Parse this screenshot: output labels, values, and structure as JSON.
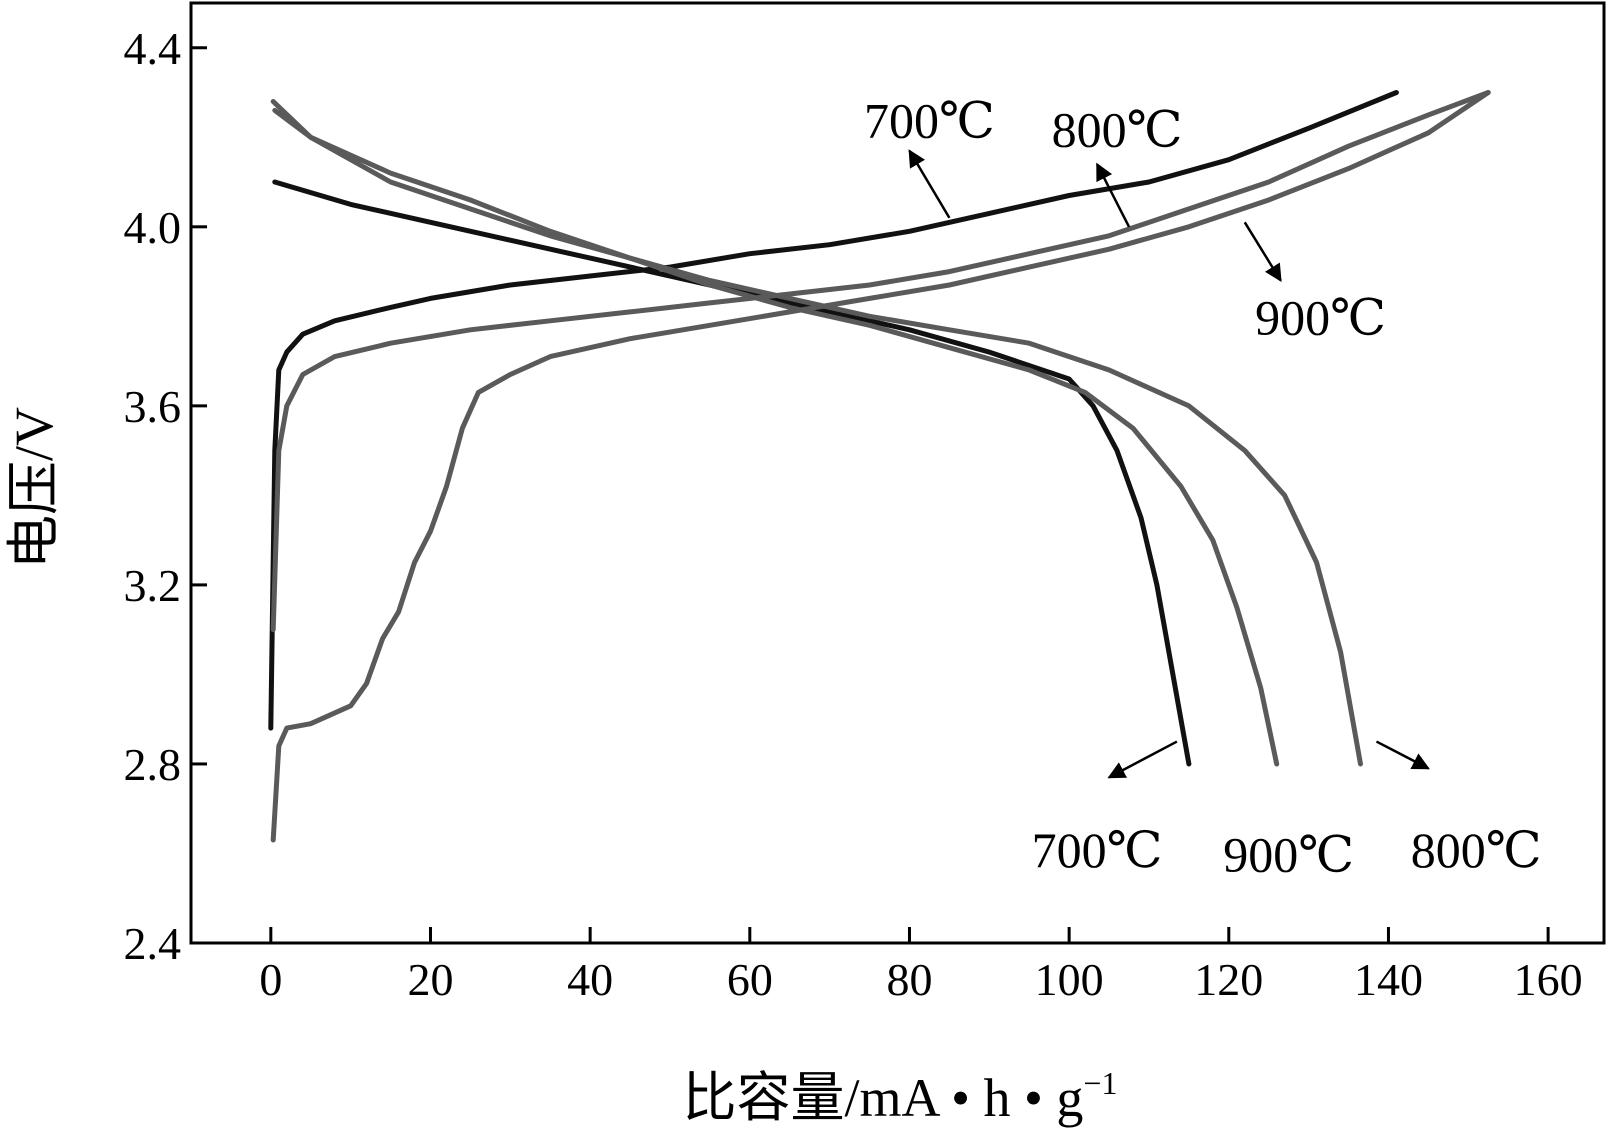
{
  "chart_data": {
    "type": "line",
    "xlabel": "比容量/mA • h • g",
    "xlabel_sup": "−1",
    "ylabel": "电压/V",
    "xlim": [
      -10,
      167
    ],
    "ylim": [
      2.4,
      4.5
    ],
    "xticks": [
      "0",
      "20",
      "40",
      "60",
      "80",
      "100",
      "120",
      "140",
      "160"
    ],
    "xtick_values": [
      0,
      20,
      40,
      60,
      80,
      100,
      120,
      140,
      160
    ],
    "yticks": [
      "2.4",
      "2.8",
      "3.2",
      "3.6",
      "4.0",
      "4.4"
    ],
    "ytick_values": [
      2.4,
      2.8,
      3.2,
      3.6,
      4.0,
      4.4
    ],
    "grid": false,
    "legend": "none",
    "series": [
      {
        "name": "700℃",
        "curve": "charge",
        "color": "#111111",
        "points": [
          [
            0,
            2.88
          ],
          [
            0.5,
            3.5
          ],
          [
            1,
            3.68
          ],
          [
            2,
            3.72
          ],
          [
            4,
            3.76
          ],
          [
            8,
            3.79
          ],
          [
            15,
            3.82
          ],
          [
            20,
            3.84
          ],
          [
            30,
            3.87
          ],
          [
            40,
            3.89
          ],
          [
            50,
            3.91
          ],
          [
            60,
            3.94
          ],
          [
            70,
            3.96
          ],
          [
            80,
            3.99
          ],
          [
            90,
            4.03
          ],
          [
            100,
            4.07
          ],
          [
            110,
            4.1
          ],
          [
            120,
            4.15
          ],
          [
            130,
            4.22
          ],
          [
            141,
            4.3
          ]
        ]
      },
      {
        "name": "700℃",
        "curve": "discharge",
        "color": "#111111",
        "points": [
          [
            0.5,
            4.1
          ],
          [
            10,
            4.05
          ],
          [
            20,
            4.01
          ],
          [
            30,
            3.97
          ],
          [
            40,
            3.93
          ],
          [
            50,
            3.89
          ],
          [
            60,
            3.85
          ],
          [
            70,
            3.81
          ],
          [
            80,
            3.77
          ],
          [
            90,
            3.72
          ],
          [
            100,
            3.66
          ],
          [
            103,
            3.6
          ],
          [
            106,
            3.5
          ],
          [
            109,
            3.35
          ],
          [
            111,
            3.2
          ],
          [
            113,
            3.0
          ],
          [
            115,
            2.8
          ]
        ]
      },
      {
        "name": "800℃",
        "curve": "charge",
        "color": "#5a5a5a",
        "points": [
          [
            0.3,
            3.1
          ],
          [
            1,
            3.5
          ],
          [
            2,
            3.6
          ],
          [
            4,
            3.67
          ],
          [
            8,
            3.71
          ],
          [
            15,
            3.74
          ],
          [
            25,
            3.77
          ],
          [
            35,
            3.79
          ],
          [
            45,
            3.81
          ],
          [
            55,
            3.83
          ],
          [
            65,
            3.85
          ],
          [
            75,
            3.87
          ],
          [
            85,
            3.9
          ],
          [
            95,
            3.94
          ],
          [
            105,
            3.98
          ],
          [
            115,
            4.04
          ],
          [
            125,
            4.1
          ],
          [
            135,
            4.18
          ],
          [
            145,
            4.25
          ],
          [
            152.5,
            4.3
          ]
        ]
      },
      {
        "name": "800℃",
        "curve": "discharge",
        "color": "#5a5a5a",
        "points": [
          [
            0.3,
            4.28
          ],
          [
            5,
            4.2
          ],
          [
            15,
            4.1
          ],
          [
            25,
            4.04
          ],
          [
            35,
            3.98
          ],
          [
            45,
            3.93
          ],
          [
            55,
            3.88
          ],
          [
            65,
            3.84
          ],
          [
            75,
            3.8
          ],
          [
            85,
            3.77
          ],
          [
            95,
            3.74
          ],
          [
            105,
            3.68
          ],
          [
            115,
            3.6
          ],
          [
            122,
            3.5
          ],
          [
            127,
            3.4
          ],
          [
            131,
            3.25
          ],
          [
            134,
            3.05
          ],
          [
            136.5,
            2.8
          ]
        ]
      },
      {
        "name": "900℃",
        "curve": "charge",
        "color": "#5a5a5a",
        "points": [
          [
            0.3,
            2.63
          ],
          [
            1,
            2.84
          ],
          [
            2,
            2.88
          ],
          [
            5,
            2.89
          ],
          [
            10,
            2.93
          ],
          [
            12,
            2.98
          ],
          [
            14,
            3.08
          ],
          [
            16,
            3.14
          ],
          [
            18,
            3.25
          ],
          [
            20,
            3.32
          ],
          [
            22,
            3.42
          ],
          [
            24,
            3.55
          ],
          [
            26,
            3.63
          ],
          [
            30,
            3.67
          ],
          [
            35,
            3.71
          ],
          [
            45,
            3.75
          ],
          [
            55,
            3.78
          ],
          [
            65,
            3.81
          ],
          [
            75,
            3.84
          ],
          [
            85,
            3.87
          ],
          [
            95,
            3.91
          ],
          [
            105,
            3.95
          ],
          [
            115,
            4.0
          ],
          [
            125,
            4.06
          ],
          [
            135,
            4.13
          ],
          [
            145,
            4.21
          ],
          [
            152.5,
            4.3
          ]
        ]
      },
      {
        "name": "900℃",
        "curve": "discharge",
        "color": "#5a5a5a",
        "points": [
          [
            0.5,
            4.26
          ],
          [
            5,
            4.2
          ],
          [
            15,
            4.12
          ],
          [
            25,
            4.06
          ],
          [
            35,
            3.99
          ],
          [
            45,
            3.93
          ],
          [
            55,
            3.87
          ],
          [
            65,
            3.82
          ],
          [
            75,
            3.78
          ],
          [
            85,
            3.73
          ],
          [
            95,
            3.68
          ],
          [
            102,
            3.63
          ],
          [
            108,
            3.55
          ],
          [
            114,
            3.42
          ],
          [
            118,
            3.3
          ],
          [
            121,
            3.15
          ],
          [
            124,
            2.97
          ],
          [
            126,
            2.8
          ]
        ]
      }
    ],
    "annotations": [
      {
        "text": "700℃",
        "label_at": [
          82.5,
          4.24
        ],
        "arrow_from": [
          85,
          4.02
        ],
        "arrow_to": [
          80,
          4.17
        ]
      },
      {
        "text": "800℃",
        "label_at": [
          106,
          4.22
        ],
        "arrow_from": [
          107.5,
          4.0
        ],
        "arrow_to": [
          103.5,
          4.14
        ]
      },
      {
        "text": "900℃",
        "label_at": [
          131.5,
          3.8
        ],
        "arrow_from": [
          122,
          4.01
        ],
        "arrow_to": [
          126.5,
          3.88
        ]
      },
      {
        "text": "700℃",
        "label_at": [
          103.5,
          2.61
        ],
        "arrow_from": [
          113.5,
          2.85
        ],
        "arrow_to": [
          105,
          2.77
        ]
      },
      {
        "text": "900℃",
        "label_at": [
          127.5,
          2.6
        ],
        "arrow_from": null,
        "arrow_to": null
      },
      {
        "text": "800℃",
        "label_at": [
          151,
          2.61
        ],
        "arrow_from": [
          138.5,
          2.85
        ],
        "arrow_to": [
          145,
          2.79
        ]
      }
    ]
  }
}
